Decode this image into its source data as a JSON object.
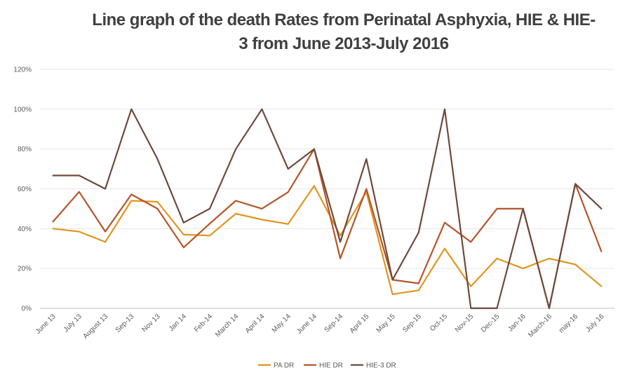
{
  "chart_data": {
    "type": "line",
    "title": "Line graph of the death Rates from Perinatal Asphyxia, HIE & HIE-3 from June 2013-July 2016",
    "xlabel": "",
    "ylabel": "",
    "ylim": [
      0,
      120
    ],
    "y_ticks": [
      "0%",
      "20%",
      "40%",
      "60%",
      "80%",
      "100%",
      "120%"
    ],
    "grid": true,
    "legend_position": "bottom",
    "categories": [
      "June 13",
      "July 13",
      "August 13",
      "Sep-13",
      "Nov 13",
      "Jan 14",
      "Feb-14",
      "March 14",
      "April 14",
      "May 14",
      "June 14",
      "Sep-14",
      "April 15",
      "May 15",
      "Sep-15",
      "Oct-15",
      "Nov-15",
      "Dec-15",
      "Jan-16",
      "March-16",
      "may-16",
      "July 16"
    ],
    "series": [
      {
        "name": "PA DR",
        "color": "#E0961E",
        "values": [
          40,
          38.5,
          33.3,
          54,
          53.5,
          37,
          36.5,
          47.5,
          44.5,
          42.3,
          61.5,
          36.5,
          58.5,
          7,
          9,
          30,
          11,
          25,
          20,
          25,
          22,
          11
        ]
      },
      {
        "name": "HIE DR",
        "color": "#B5552A",
        "values": [
          43.5,
          58.5,
          38.5,
          57.2,
          50,
          30.5,
          42.5,
          54,
          50,
          58.3,
          80,
          25,
          60,
          14.3,
          12.5,
          43,
          33.3,
          50,
          50,
          0,
          62.5,
          28.5
        ]
      },
      {
        "name": "HIE-3 DR",
        "color": "#6E4A3C",
        "values": [
          66.7,
          66.7,
          60,
          100,
          75,
          43,
          50,
          80,
          100,
          70,
          80,
          33.3,
          75,
          14.3,
          38,
          100,
          0,
          0,
          50,
          0,
          62.5,
          50
        ]
      }
    ]
  }
}
